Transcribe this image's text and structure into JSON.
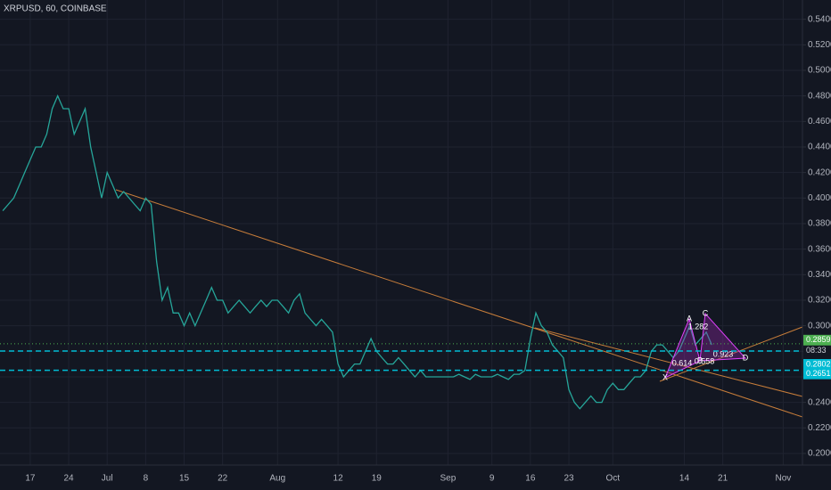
{
  "chart_data": {
    "type": "line",
    "title": "XRPUSD, 60, COINBASE",
    "color": "#26a69a",
    "grid": true,
    "categories": [
      null,
      null,
      null,
      null,
      null,
      "17",
      null,
      null,
      null,
      null,
      null,
      null,
      "24",
      null,
      null,
      null,
      null,
      null,
      null,
      "Jul",
      null,
      null,
      null,
      null,
      null,
      null,
      "8",
      null,
      null,
      null,
      null,
      null,
      null,
      "15",
      null,
      null,
      null,
      null,
      null,
      null,
      "22",
      null,
      null,
      null,
      null,
      null,
      null,
      null,
      null,
      null,
      "Aug",
      null,
      null,
      null,
      null,
      null,
      null,
      null,
      null,
      null,
      null,
      "12",
      null,
      null,
      null,
      null,
      null,
      null,
      "19",
      null,
      null,
      null,
      null,
      null,
      null,
      null,
      null,
      null,
      null,
      null,
      null,
      "Sep",
      null,
      null,
      null,
      null,
      null,
      null,
      null,
      "9",
      null,
      null,
      null,
      null,
      null,
      null,
      "16",
      null,
      null,
      null,
      null,
      null,
      null,
      "23",
      null,
      null,
      null,
      null,
      null,
      null,
      null,
      "Oct",
      null,
      null,
      null,
      null,
      null,
      null,
      null,
      null,
      null,
      null,
      null,
      null,
      "14",
      null,
      null,
      null,
      null,
      null,
      null,
      "21",
      null,
      null,
      null,
      null,
      null,
      null,
      null,
      null,
      null,
      null,
      "Nov",
      null,
      null,
      null
    ],
    "values": [
      0.39,
      0.395,
      0.4,
      0.41,
      0.42,
      0.43,
      0.44,
      0.44,
      0.45,
      0.47,
      0.48,
      0.47,
      0.47,
      0.45,
      0.46,
      0.47,
      0.44,
      0.42,
      0.4,
      0.42,
      0.41,
      0.4,
      0.405,
      0.4,
      0.395,
      0.39,
      0.4,
      0.395,
      0.35,
      0.32,
      0.33,
      0.31,
      0.31,
      0.3,
      0.31,
      0.3,
      0.31,
      0.32,
      0.33,
      0.32,
      0.32,
      0.31,
      0.315,
      0.32,
      0.315,
      0.31,
      0.315,
      0.32,
      0.315,
      0.32,
      0.32,
      0.315,
      0.31,
      0.32,
      0.325,
      0.31,
      0.305,
      0.3,
      0.305,
      0.3,
      0.295,
      0.27,
      0.26,
      0.265,
      0.27,
      0.27,
      0.28,
      0.29,
      0.28,
      0.275,
      0.27,
      0.27,
      0.275,
      0.27,
      0.265,
      0.26,
      0.265,
      0.26,
      0.26,
      0.26,
      0.26,
      0.26,
      0.26,
      0.262,
      0.26,
      0.258,
      0.262,
      0.26,
      0.26,
      0.26,
      0.262,
      0.26,
      0.258,
      0.262,
      0.262,
      0.265,
      0.29,
      0.31,
      0.3,
      0.295,
      0.285,
      0.28,
      0.275,
      0.25,
      0.24,
      0.235,
      0.24,
      0.245,
      0.24,
      0.24,
      0.25,
      0.255,
      0.25,
      0.25,
      0.255,
      0.26,
      0.26,
      0.265,
      0.28,
      0.285,
      0.285,
      0.28,
      0.275,
      0.28,
      0.29,
      0.3,
      0.285,
      0.29,
      0.295,
      0.285,
      null,
      null,
      null,
      null,
      null,
      null,
      null,
      null,
      null,
      null,
      null,
      null,
      null,
      null,
      null,
      null
    ],
    "ylim": [
      0.1909,
      0.5551
    ],
    "yticks": [
      {
        "value": 0.2,
        "label": "0.2000"
      },
      {
        "value": 0.22,
        "label": "0.2200"
      },
      {
        "value": 0.24,
        "label": "0.2400"
      },
      {
        "value": 0.26,
        "label": "0.2600"
      },
      {
        "value": 0.28,
        "label": "0.2800"
      },
      {
        "value": 0.3,
        "label": "0.3000"
      },
      {
        "value": 0.32,
        "label": "0.3200"
      },
      {
        "value": 0.34,
        "label": "0.3400"
      },
      {
        "value": 0.36,
        "label": "0.3600"
      },
      {
        "value": 0.38,
        "label": "0.3800"
      },
      {
        "value": 0.4,
        "label": "0.4000"
      },
      {
        "value": 0.42,
        "label": "0.4200"
      },
      {
        "value": 0.44,
        "label": "0.4400"
      },
      {
        "value": 0.46,
        "label": "0.4600"
      },
      {
        "value": 0.48,
        "label": "0.4800"
      },
      {
        "value": 0.5,
        "label": "0.5000"
      },
      {
        "value": 0.52,
        "label": "0.5200"
      },
      {
        "value": 0.54,
        "label": "0.5400"
      }
    ],
    "price_lines": [
      {
        "value": 0.2859,
        "color": "#4caf50"
      },
      {
        "value": 0.2802,
        "color": "#00bcd4"
      },
      {
        "value": 0.2651,
        "color": "#00bcd4"
      }
    ],
    "countdown": "08:33",
    "pattern": {
      "points": [
        "X",
        "A",
        "B",
        "C",
        "D"
      ],
      "ratios": [
        "1.282",
        "0.614",
        "0.558",
        "0.923"
      ]
    }
  }
}
